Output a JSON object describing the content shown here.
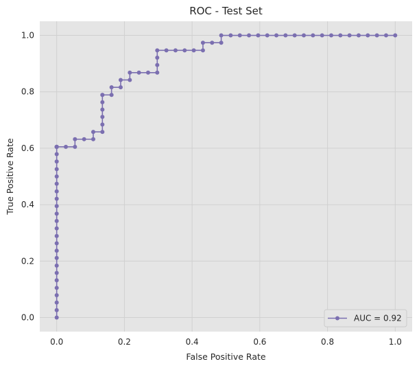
{
  "chart_data": {
    "type": "line",
    "title": "ROC - Test Set",
    "xlabel": "False Positive Rate",
    "ylabel": "True Positive Rate",
    "xlim": [
      -0.05,
      1.05
    ],
    "ylim": [
      -0.05,
      1.05
    ],
    "xticks": [
      0.0,
      0.2,
      0.4,
      0.6,
      0.8,
      1.0
    ],
    "yticks": [
      0.0,
      0.2,
      0.4,
      0.6,
      0.8,
      1.0
    ],
    "xtick_labels": [
      "0.0",
      "0.2",
      "0.4",
      "0.6",
      "0.8",
      "1.0"
    ],
    "ytick_labels": [
      "0.0",
      "0.2",
      "0.4",
      "0.6",
      "0.8",
      "1.0"
    ],
    "grid": true,
    "legend_position": "lower-right",
    "colors": {
      "line": "#7b6fb0",
      "plot_background": "#e5e5e5",
      "grid": "#d0d0d0"
    },
    "series": [
      {
        "name": "AUC = 0.92",
        "x": [
          0.0,
          0.0,
          0.0,
          0.0,
          0.0,
          0.0,
          0.0,
          0.0,
          0.0,
          0.0,
          0.0,
          0.0,
          0.0,
          0.0,
          0.0,
          0.0,
          0.0,
          0.0,
          0.0,
          0.0,
          0.0,
          0.0,
          0.0,
          0.0,
          0.0,
          0.0,
          0.0,
          0.0,
          0.0,
          0.0,
          0.027,
          0.054,
          0.054,
          0.081,
          0.108,
          0.108,
          0.135,
          0.135,
          0.135,
          0.135,
          0.135,
          0.135,
          0.135,
          0.162,
          0.162,
          0.189,
          0.189,
          0.216,
          0.216,
          0.243,
          0.27,
          0.297,
          0.297,
          0.297,
          0.297,
          0.324,
          0.351,
          0.378,
          0.405,
          0.432,
          0.432,
          0.459,
          0.486,
          0.486,
          0.514,
          0.541,
          0.568,
          0.595,
          0.622,
          0.649,
          0.676,
          0.703,
          0.73,
          0.757,
          0.784,
          0.811,
          0.838,
          0.865,
          0.892,
          0.919,
          0.946,
          0.973,
          1.0
        ],
        "y": [
          0.0,
          0.026,
          0.053,
          0.079,
          0.105,
          0.132,
          0.158,
          0.184,
          0.211,
          0.237,
          0.263,
          0.289,
          0.316,
          0.342,
          0.368,
          0.395,
          0.421,
          0.447,
          0.474,
          0.5,
          0.526,
          0.553,
          0.579,
          0.605,
          0.605,
          0.605,
          0.605,
          0.605,
          0.605,
          0.605,
          0.605,
          0.605,
          0.632,
          0.632,
          0.632,
          0.658,
          0.658,
          0.684,
          0.711,
          0.737,
          0.763,
          0.789,
          0.789,
          0.789,
          0.816,
          0.816,
          0.842,
          0.842,
          0.868,
          0.868,
          0.868,
          0.868,
          0.895,
          0.921,
          0.947,
          0.947,
          0.947,
          0.947,
          0.947,
          0.947,
          0.974,
          0.974,
          0.974,
          1.0,
          1.0,
          1.0,
          1.0,
          1.0,
          1.0,
          1.0,
          1.0,
          1.0,
          1.0,
          1.0,
          1.0,
          1.0,
          1.0,
          1.0,
          1.0,
          1.0,
          1.0,
          1.0,
          1.0
        ]
      }
    ]
  }
}
